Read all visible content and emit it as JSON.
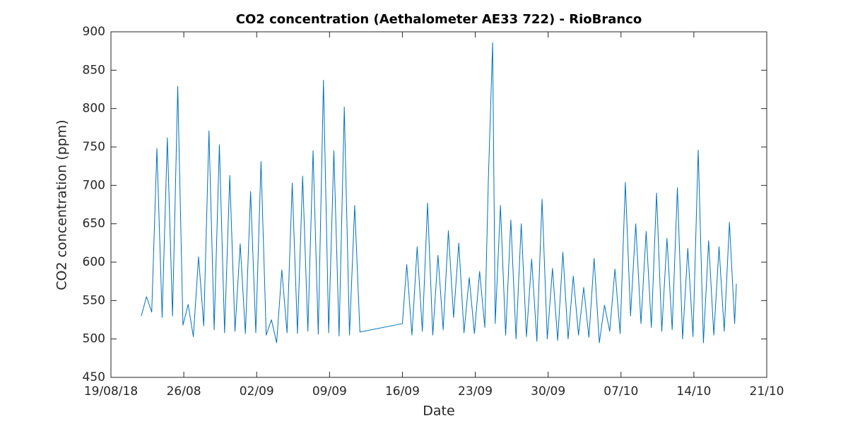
{
  "chart_data": {
    "type": "line",
    "title": "CO2 concentration (Aethalometer AE33 722) - RioBranco",
    "xlabel": "Date",
    "ylabel": "CO2 concentration (ppm)",
    "series": [
      {
        "name": "CO2",
        "color": "#0072bd",
        "x": [
          "2018-08-21T22:00",
          "2018-08-22T10:00",
          "2018-08-22T22:00",
          "2018-08-23T10:00",
          "2018-08-23T22:00",
          "2018-08-24T10:00",
          "2018-08-24T22:00",
          "2018-08-25T10:00",
          "2018-08-25T22:00",
          "2018-08-26T10:00",
          "2018-08-26T22:00",
          "2018-08-27T10:00",
          "2018-08-27T22:00",
          "2018-08-28T10:00",
          "2018-08-28T22:00",
          "2018-08-29T10:00",
          "2018-08-29T22:00",
          "2018-08-30T10:00",
          "2018-08-30T22:00",
          "2018-08-31T10:00",
          "2018-08-31T22:00",
          "2018-09-01T10:00",
          "2018-09-01T22:00",
          "2018-09-02T10:00",
          "2018-09-02T22:00",
          "2018-09-03T10:00",
          "2018-09-03T22:00",
          "2018-09-04T10:00",
          "2018-09-04T22:00",
          "2018-09-05T10:00",
          "2018-09-05T22:00",
          "2018-09-06T10:00",
          "2018-09-06T22:00",
          "2018-09-07T10:00",
          "2018-09-07T22:00",
          "2018-09-08T10:00",
          "2018-09-08T22:00",
          "2018-09-09T10:00",
          "2018-09-09T22:00",
          "2018-09-10T10:00",
          "2018-09-10T22:00",
          "2018-09-11T10:00",
          "2018-09-11T22:00",
          "2018-09-16T00:00",
          "2018-09-16T10:00",
          "2018-09-16T22:00",
          "2018-09-17T10:00",
          "2018-09-17T22:00",
          "2018-09-18T10:00",
          "2018-09-18T22:00",
          "2018-09-19T10:00",
          "2018-09-19T22:00",
          "2018-09-20T10:00",
          "2018-09-20T22:00",
          "2018-09-21T10:00",
          "2018-09-21T22:00",
          "2018-09-22T10:00",
          "2018-09-22T22:00",
          "2018-09-23T10:00",
          "2018-09-23T22:00",
          "2018-09-24T06:00",
          "2018-09-24T16:00",
          "2018-09-24T22:00",
          "2018-09-25T10:00",
          "2018-09-25T22:00",
          "2018-09-26T10:00",
          "2018-09-26T22:00",
          "2018-09-27T10:00",
          "2018-09-27T22:00",
          "2018-09-28T10:00",
          "2018-09-28T22:00",
          "2018-09-29T10:00",
          "2018-09-29T22:00",
          "2018-09-30T10:00",
          "2018-09-30T22:00",
          "2018-10-01T10:00",
          "2018-10-01T22:00",
          "2018-10-02T10:00",
          "2018-10-02T22:00",
          "2018-10-03T10:00",
          "2018-10-03T22:00",
          "2018-10-04T10:00",
          "2018-10-04T22:00",
          "2018-10-05T10:00",
          "2018-10-05T22:00",
          "2018-10-06T10:00",
          "2018-10-06T22:00",
          "2018-10-07T10:00",
          "2018-10-07T22:00",
          "2018-10-08T10:00",
          "2018-10-08T22:00",
          "2018-10-09T10:00",
          "2018-10-09T22:00",
          "2018-10-10T10:00",
          "2018-10-10T22:00",
          "2018-10-11T10:00",
          "2018-10-11T22:00",
          "2018-10-12T10:00",
          "2018-10-12T22:00",
          "2018-10-13T10:00",
          "2018-10-13T22:00",
          "2018-10-14T10:00",
          "2018-10-14T22:00",
          "2018-10-15T10:00",
          "2018-10-15T22:00",
          "2018-10-16T10:00",
          "2018-10-16T22:00",
          "2018-10-17T10:00",
          "2018-10-17T22:00",
          "2018-10-18T02:00"
        ],
        "values": [
          530,
          555,
          535,
          748,
          528,
          762,
          530,
          829,
          518,
          545,
          503,
          607,
          517,
          771,
          512,
          753,
          508,
          713,
          510,
          624,
          507,
          692,
          508,
          731,
          505,
          525,
          495,
          590,
          508,
          703,
          507,
          712,
          510,
          745,
          506,
          837,
          508,
          745,
          504,
          802,
          505,
          674,
          509,
          520,
          597,
          505,
          620,
          510,
          677,
          505,
          609,
          512,
          641,
          528,
          625,
          508,
          580,
          507,
          588,
          515,
          704,
          886,
          520,
          674,
          505,
          655,
          500,
          650,
          503,
          604,
          497,
          682,
          500,
          592,
          498,
          613,
          500,
          582,
          505,
          567,
          502,
          605,
          495,
          544,
          510,
          591,
          507,
          704,
          530,
          650,
          520,
          640,
          515,
          690,
          510,
          631,
          512,
          697,
          500,
          618,
          503,
          746,
          495,
          628,
          505,
          620,
          510,
          652,
          520,
          572
        ]
      }
    ],
    "xlim": [
      "2018-08-19",
      "2018-10-21"
    ],
    "xticks": [
      {
        "value": "2018-08-19",
        "label": "19/08/18"
      },
      {
        "value": "2018-08-26",
        "label": "26/08"
      },
      {
        "value": "2018-09-02",
        "label": "02/09"
      },
      {
        "value": "2018-09-09",
        "label": "09/09"
      },
      {
        "value": "2018-09-16",
        "label": "16/09"
      },
      {
        "value": "2018-09-23",
        "label": "23/09"
      },
      {
        "value": "2018-09-30",
        "label": "30/09"
      },
      {
        "value": "2018-10-07",
        "label": "07/10"
      },
      {
        "value": "2018-10-14",
        "label": "14/10"
      },
      {
        "value": "2018-10-21",
        "label": "21/10"
      }
    ],
    "ylim": [
      450,
      900
    ],
    "yticks": [
      450,
      500,
      550,
      600,
      650,
      700,
      750,
      800,
      850,
      900
    ],
    "grid": false
  }
}
